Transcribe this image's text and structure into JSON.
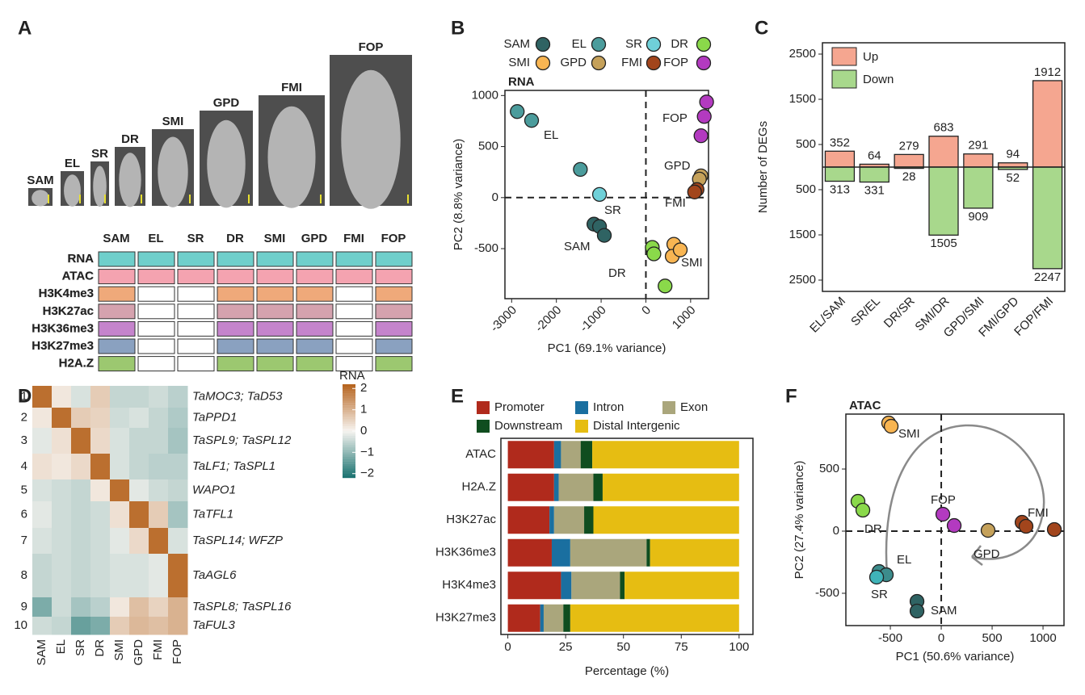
{
  "panel_labels": [
    "A",
    "B",
    "C",
    "D",
    "E",
    "F"
  ],
  "panel_a": {
    "stages": [
      {
        "name": "SAM",
        "color": "#1f5252"
      },
      {
        "name": "EL",
        "color": "#246a6a"
      },
      {
        "name": "SR",
        "color": "#3fb3b8"
      },
      {
        "name": "DR",
        "color": "#6cc62a"
      },
      {
        "name": "SMI",
        "color": "#f0a030"
      },
      {
        "name": "GPD",
        "color": "#a08020"
      },
      {
        "name": "FMI",
        "color": "#8b3a17"
      },
      {
        "name": "FOP",
        "color": "#a020a0"
      }
    ],
    "marks": [
      {
        "name": "RNA",
        "color": "#6fcfcb",
        "profiled": [
          1,
          1,
          1,
          1,
          1,
          1,
          1,
          1
        ]
      },
      {
        "name": "ATAC",
        "color": "#f4a3b0",
        "profiled": [
          1,
          1,
          1,
          1,
          1,
          1,
          1,
          1
        ]
      },
      {
        "name": "H3K4me3",
        "color": "#efa97a",
        "profiled": [
          1,
          0,
          0,
          1,
          1,
          1,
          0,
          1
        ]
      },
      {
        "name": "H3K27ac",
        "color": "#d5a2ae",
        "profiled": [
          1,
          0,
          0,
          1,
          1,
          1,
          0,
          1
        ]
      },
      {
        "name": "H3K36me3",
        "color": "#c584cc",
        "profiled": [
          1,
          0,
          0,
          1,
          1,
          1,
          0,
          1
        ]
      },
      {
        "name": "H3K27me3",
        "color": "#8aa1c0",
        "profiled": [
          1,
          0,
          0,
          1,
          1,
          1,
          0,
          1
        ]
      },
      {
        "name": "H2A.Z",
        "color": "#9cc870",
        "profiled": [
          1,
          0,
          0,
          1,
          1,
          1,
          0,
          1
        ]
      }
    ]
  },
  "chart_data": [
    {
      "type": "heatmap",
      "categories": [
        "SAM",
        "EL",
        "SR",
        "DR",
        "SMI",
        "GPD",
        "FMI",
        "FOP"
      ],
      "clusters": [
        1,
        2,
        3,
        4,
        5,
        6,
        7,
        8,
        9,
        10
      ],
      "row_labels": [
        "TaMOC3; TaD53",
        "TaPPD1",
        "TaSPL9; TaSPL12",
        "TaLF1; TaSPL1",
        "WAPO1",
        "TaTFL1",
        "TaSPL14; WFZP",
        "TaAGL6",
        "TaSPL8; TaSPL16",
        "TaFUL3"
      ],
      "values": [
        [
          2,
          0.2,
          -0.3,
          0.6,
          -0.5,
          -0.5,
          -0.4,
          -0.6
        ],
        [
          0.2,
          2,
          0.6,
          0.5,
          -0.4,
          -0.3,
          -0.5,
          -0.7
        ],
        [
          -0.2,
          0.3,
          2,
          0.4,
          -0.3,
          -0.5,
          -0.5,
          -0.8
        ],
        [
          0.3,
          0.2,
          0.4,
          2,
          -0.3,
          -0.5,
          -0.6,
          -0.6
        ],
        [
          -0.3,
          -0.4,
          -0.5,
          0.2,
          2,
          -0.2,
          -0.4,
          -0.5
        ],
        [
          -0.2,
          -0.4,
          -0.5,
          -0.4,
          0.3,
          2,
          0.6,
          -0.8
        ],
        [
          -0.3,
          -0.4,
          -0.5,
          -0.4,
          -0.2,
          0.4,
          2,
          -0.3
        ],
        [
          -0.5,
          -0.4,
          -0.5,
          -0.4,
          -0.3,
          -0.3,
          -0.2,
          2
        ],
        [
          -1.2,
          -0.4,
          -0.8,
          -0.6,
          0.2,
          0.8,
          0.5,
          1.0
        ],
        [
          -0.4,
          -0.5,
          -1.4,
          -1.2,
          0.6,
          0.9,
          0.8,
          1.0
        ]
      ],
      "colorbar_title": "RNA",
      "clim": [
        -2.2,
        2.2
      ],
      "colorbar_ticks": [
        2,
        1,
        0,
        {
          "value": -1,
          "label": "−1"
        },
        {
          "value": -2,
          "label": "−2"
        }
      ],
      "colors": [
        "#16706e",
        "#f7f4f0",
        "#b5621c"
      ]
    },
    {
      "type": "scatter",
      "title": "RNA",
      "x_label": "PC1 (69.1% variance)",
      "y_label": "PC2 (8.8% variance)",
      "xlim": [
        -3150,
        1400
      ],
      "ylim": [
        -990,
        1050
      ],
      "xticks": [
        -3000,
        -2000,
        -1000,
        0,
        1000
      ],
      "yticks": [
        -500,
        0,
        500,
        1000
      ],
      "zero_lines": true,
      "legend": "top",
      "series": [
        {
          "name": "SAM",
          "color": "#2f6363",
          "x": [
            -1161,
            -1036,
            -929
          ],
          "values": [
            -260,
            -283,
            -370
          ]
        },
        {
          "name": "EL",
          "color": "#4b9c9c",
          "x": [
            -2875,
            -2554,
            -1464
          ],
          "values": [
            843,
            756,
            276
          ]
        },
        {
          "name": "SR",
          "color": "#6fd0d8",
          "x": [
            -1036
          ],
          "values": [
            31
          ]
        },
        {
          "name": "DR",
          "color": "#8ad94a",
          "x": [
            143,
            179,
            429
          ],
          "values": [
            -488,
            -551,
            -866
          ]
        },
        {
          "name": "SMI",
          "color": "#f8b552",
          "x": [
            625,
            589,
            768
          ],
          "values": [
            -457,
            -575,
            -512
          ]
        },
        {
          "name": "GPD",
          "color": "#c5a15a",
          "x": [
            1232,
            1196
          ],
          "values": [
            213,
            181
          ]
        },
        {
          "name": "FMI",
          "color": "#a2451c",
          "x": [
            1143,
            1089
          ],
          "values": [
            79,
            55
          ]
        },
        {
          "name": "FOP",
          "color": "#b33ac0",
          "x": [
            1357,
            1304,
            1232
          ],
          "values": [
            937,
            795,
            606
          ]
        }
      ]
    },
    {
      "type": "bar",
      "diverging": true,
      "y_label": "Number of DEGs",
      "categories": [
        "EL/SAM",
        "SR/EL",
        "DR/SR",
        "SMI/DR",
        "GPD/SMI",
        "FMI/GPD",
        "FOP/FMI"
      ],
      "ylim": [
        0,
        2750
      ],
      "yticks": [
        500,
        1500,
        2500
      ],
      "series": [
        {
          "name": "Up",
          "color": "#f5a690",
          "values": [
            352,
            64,
            279,
            683,
            291,
            94,
            1912
          ]
        },
        {
          "name": "Down",
          "color": "#a8d88c",
          "values": [
            313,
            331,
            28,
            1505,
            909,
            52,
            2247
          ]
        }
      ]
    },
    {
      "type": "stacked_barh",
      "x_label": "Percentage (%)",
      "categories": [
        "ATAC",
        "H2A.Z",
        "H3K27ac",
        "H3K36me3",
        "H3K4me3",
        "H3K27me3"
      ],
      "xlim": [
        -3,
        106
      ],
      "xticks": [
        0,
        25,
        50,
        75,
        100
      ],
      "series": [
        {
          "name": "Promoter",
          "color": "#b02a1c",
          "values": [
            20,
            20,
            18,
            19,
            23,
            14
          ]
        },
        {
          "name": "Intron",
          "color": "#1a6fa0",
          "values": [
            3,
            2,
            2,
            8,
            4.5,
            1.5
          ]
        },
        {
          "name": "Exon",
          "color": "#aaa67c",
          "values": [
            8.5,
            15,
            13,
            33,
            21,
            8.5
          ]
        },
        {
          "name": "Downstream",
          "color": "#0f4d1f",
          "values": [
            5,
            4,
            4,
            1.5,
            2,
            3
          ]
        },
        {
          "name": "Distal Intergenic",
          "color": "#e6bd12",
          "values": [
            63.5,
            59,
            63,
            38.5,
            49.5,
            73
          ]
        }
      ]
    },
    {
      "type": "scatter",
      "title": "ATAC",
      "x_label": "PC1 (50.6% variance)",
      "y_label": "PC2 (27.4% variance)",
      "xlim": [
        -937,
        1206
      ],
      "ylim": [
        -760,
        942
      ],
      "xticks": [
        -500,
        0,
        500,
        1000
      ],
      "yticks": [
        -500,
        0,
        500
      ],
      "zero_lines": true,
      "series": [
        {
          "name": "SAM",
          "color": "#2f6363",
          "x": [
            -238,
            -238
          ],
          "values": [
            -565,
            -643
          ]
        },
        {
          "name": "EL",
          "color": "#3c8c8c",
          "x": [
            -611,
            -540
          ],
          "values": [
            -325,
            -351
          ]
        },
        {
          "name": "SR",
          "color": "#3fb3b8",
          "x": [
            -635
          ],
          "values": [
            -370
          ]
        },
        {
          "name": "DR",
          "color": "#8ad94a",
          "x": [
            -818,
            -770
          ],
          "values": [
            240,
            169
          ]
        },
        {
          "name": "SMI",
          "color": "#f8b552",
          "x": [
            -516,
            -492
          ],
          "values": [
            870,
            844
          ]
        },
        {
          "name": "GPD",
          "color": "#c5a15a",
          "x": [
            460
          ],
          "values": [
            6
          ]
        },
        {
          "name": "FMI",
          "color": "#a2451c",
          "x": [
            794,
            833,
            1111
          ],
          "values": [
            71,
            39,
            13
          ]
        },
        {
          "name": "FOP",
          "color": "#b33ac0",
          "x": [
            16,
            127
          ],
          "values": [
            136,
            45
          ]
        }
      ]
    }
  ]
}
